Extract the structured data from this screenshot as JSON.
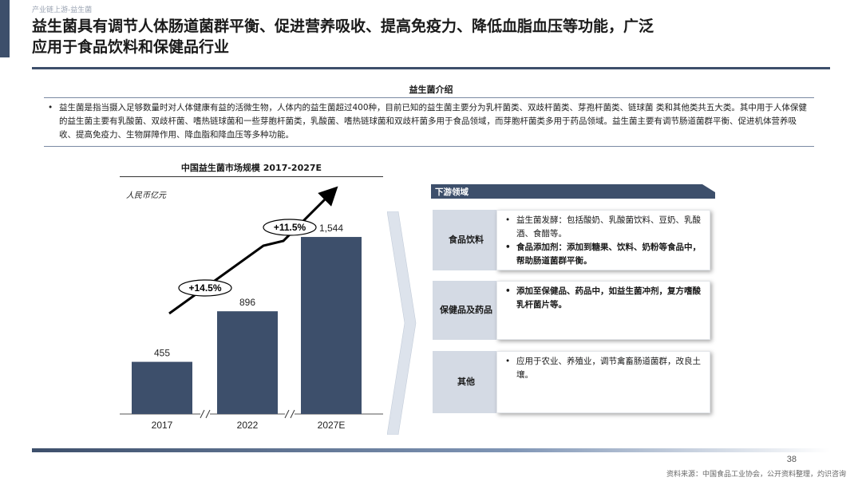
{
  "breadcrumb": "产业链上游-益生菌",
  "title_line1": "益生菌具有调节人体肠道菌群平衡、促进营养吸收、提高免疫力、降低血脂血压等功能，广泛",
  "title_line2": "应用于食品饮料和保健品行业",
  "intro": {
    "heading": "益生菌介绍",
    "bullet": "•",
    "text": "益生菌是指当摄入足够数量时对人体健康有益的活微生物，人体内的益生菌超过400种，目前已知的益生菌主要分为乳杆菌类、双歧杆菌类、芽孢杆菌类、链球菌 类和其他类共五大类。其中用于人体保健的益生菌主要有乳酸菌、双歧杆菌、嗜热链球菌和一些芽胞杆菌类，乳酸菌、嗜热链球菌和双歧杆菌多用于食品领域，而芽胞杆菌类多用于药品领域。益生菌主要有调节肠道菌群平衡、促进机体营养吸收、提高免疫力、生物屏障作用、降血脂和降血压等多种功能。"
  },
  "chart_data": {
    "type": "bar",
    "title": "中国益生菌市场规模 2017-2027E",
    "unit_label": "人民币亿元",
    "categories": [
      "2017",
      "2022",
      "2027E"
    ],
    "values": [
      455,
      896,
      1544
    ],
    "data_labels": [
      "455",
      "896",
      "1,544"
    ],
    "axis_breaks": true,
    "growth_annotations": [
      {
        "label": "+14.5%",
        "from": "2017",
        "to": "2022"
      },
      {
        "label": "+11.5%",
        "from": "2022",
        "to": "2027E"
      }
    ],
    "bar_color": "#3d4f6b"
  },
  "downstream": {
    "header": "下游领域",
    "rows": [
      {
        "category": "食品饮料",
        "items": [
          {
            "text": "益生菌发酵：包括酸奶、乳酸菌饮料、豆奶、乳酸酒、食醋等。",
            "bold": false
          },
          {
            "text": "食品添加剂：添加到糖果、饮料、奶粉等食品中，帮助肠道菌群平衡。",
            "bold": true
          }
        ]
      },
      {
        "category": "保健品及药品",
        "items": [
          {
            "text": "添加至保健品、药品中，如益生菌冲剂，复方嗜酸乳杆菌片等。",
            "bold": true
          }
        ]
      },
      {
        "category": "其他",
        "items": [
          {
            "text": "应用于农业、养殖业，调节禽畜肠道菌群，改良土壤。",
            "bold": false
          }
        ]
      }
    ],
    "bullet": "•"
  },
  "page_number": "38",
  "source": "资料来源：中国食品工业协会，公开资料整理，灼识咨询"
}
